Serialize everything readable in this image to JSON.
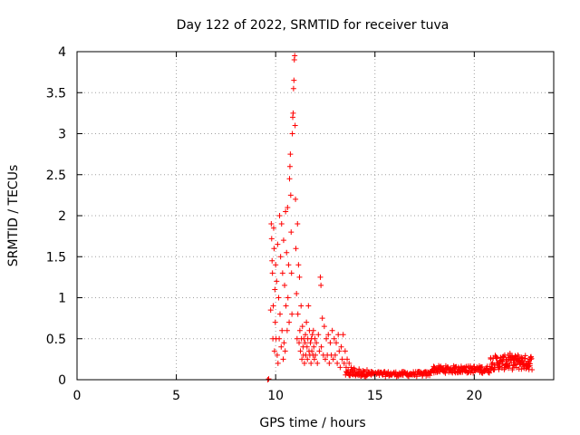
{
  "colors": {
    "series": "#ff0000",
    "axis": "#000000",
    "grid": "#a0a0a0",
    "background": "#ffffff"
  },
  "chart_data": {
    "type": "scatter",
    "title": "Day 122 of 2022, SRMTID for receiver tuva",
    "xlabel": "GPS time / hours",
    "ylabel": "SRMTID / TECUs",
    "xlim": [
      0,
      24
    ],
    "ylim": [
      0,
      4
    ],
    "xticks": [
      0,
      5,
      10,
      15,
      20
    ],
    "xtick_labels": [
      "0",
      "5",
      "10",
      "15",
      "20"
    ],
    "yticks": [
      0,
      0.5,
      1,
      1.5,
      2,
      2.5,
      3,
      3.5,
      4
    ],
    "ytick_labels": [
      "0",
      "0.5",
      "1",
      "1.5",
      "2",
      "2.5",
      "3",
      "3.5",
      "4"
    ],
    "grid": true,
    "marker": "plus",
    "series": [
      {
        "name": "SRMTID",
        "points": [
          [
            9.6,
            0.0
          ],
          [
            9.65,
            0.01
          ],
          [
            9.75,
            0.85
          ],
          [
            9.78,
            1.9
          ],
          [
            9.8,
            1.72
          ],
          [
            9.82,
            1.45
          ],
          [
            9.84,
            1.3
          ],
          [
            9.86,
            0.5
          ],
          [
            9.88,
            0.9
          ],
          [
            9.9,
            1.85
          ],
          [
            9.92,
            1.6
          ],
          [
            9.94,
            0.35
          ],
          [
            9.96,
            1.1
          ],
          [
            9.98,
            0.7
          ],
          [
            10.0,
            1.4
          ],
          [
            10.02,
            0.5
          ],
          [
            10.05,
            1.2
          ],
          [
            10.08,
            0.3
          ],
          [
            10.1,
            1.65
          ],
          [
            10.12,
            0.2
          ],
          [
            10.15,
            1.0
          ],
          [
            10.18,
            0.5
          ],
          [
            10.2,
            2.0
          ],
          [
            10.22,
            0.8
          ],
          [
            10.25,
            1.5
          ],
          [
            10.28,
            0.4
          ],
          [
            10.3,
            1.9
          ],
          [
            10.32,
            0.6
          ],
          [
            10.35,
            1.3
          ],
          [
            10.38,
            0.25
          ],
          [
            10.4,
            1.7
          ],
          [
            10.42,
            0.45
          ],
          [
            10.45,
            1.15
          ],
          [
            10.48,
            0.35
          ],
          [
            10.5,
            2.05
          ],
          [
            10.52,
            0.9
          ],
          [
            10.55,
            1.55
          ],
          [
            10.58,
            0.6
          ],
          [
            10.6,
            2.1
          ],
          [
            10.62,
            1.0
          ],
          [
            10.65,
            1.4
          ],
          [
            10.68,
            0.7
          ],
          [
            10.7,
            2.45
          ],
          [
            10.72,
            2.6
          ],
          [
            10.74,
            2.75
          ],
          [
            10.76,
            2.25
          ],
          [
            10.78,
            1.8
          ],
          [
            10.8,
            1.3
          ],
          [
            10.82,
            0.8
          ],
          [
            10.84,
            3.0
          ],
          [
            10.86,
            3.2
          ],
          [
            10.88,
            3.25
          ],
          [
            10.9,
            3.55
          ],
          [
            10.92,
            3.65
          ],
          [
            10.94,
            3.9
          ],
          [
            10.96,
            3.95
          ],
          [
            10.98,
            3.1
          ],
          [
            11.0,
            2.2
          ],
          [
            11.02,
            1.6
          ],
          [
            11.05,
            1.05
          ],
          [
            11.08,
            0.5
          ],
          [
            11.1,
            1.9
          ],
          [
            11.12,
            0.8
          ],
          [
            11.15,
            1.4
          ],
          [
            11.18,
            0.45
          ],
          [
            11.2,
            1.25
          ],
          [
            11.22,
            0.6
          ],
          [
            11.25,
            0.35
          ],
          [
            11.28,
            0.9
          ],
          [
            11.3,
            0.5
          ],
          [
            11.32,
            0.25
          ],
          [
            11.35,
            0.65
          ],
          [
            11.38,
            0.4
          ],
          [
            11.4,
            0.3
          ],
          [
            11.42,
            0.5
          ],
          [
            11.45,
            0.2
          ],
          [
            11.48,
            0.45
          ],
          [
            11.5,
            0.55
          ],
          [
            11.52,
            0.3
          ],
          [
            11.55,
            0.7
          ],
          [
            11.58,
            0.4
          ],
          [
            11.6,
            0.25
          ],
          [
            11.62,
            0.5
          ],
          [
            11.65,
            0.9
          ],
          [
            11.68,
            0.35
          ],
          [
            11.7,
            0.6
          ],
          [
            11.72,
            0.3
          ],
          [
            11.75,
            0.45
          ],
          [
            11.78,
            0.2
          ],
          [
            11.8,
            0.5
          ],
          [
            11.82,
            0.35
          ],
          [
            11.85,
            0.55
          ],
          [
            11.88,
            0.3
          ],
          [
            11.9,
            0.6
          ],
          [
            11.92,
            0.4
          ],
          [
            11.95,
            0.25
          ],
          [
            11.98,
            0.5
          ],
          [
            12.0,
            0.3
          ],
          [
            12.05,
            0.45
          ],
          [
            12.1,
            0.2
          ],
          [
            12.15,
            0.55
          ],
          [
            12.2,
            0.35
          ],
          [
            12.25,
            1.25
          ],
          [
            12.28,
            1.15
          ],
          [
            12.3,
            0.4
          ],
          [
            12.35,
            0.75
          ],
          [
            12.4,
            0.3
          ],
          [
            12.45,
            0.65
          ],
          [
            12.5,
            0.25
          ],
          [
            12.55,
            0.5
          ],
          [
            12.6,
            0.3
          ],
          [
            12.65,
            0.55
          ],
          [
            12.7,
            0.2
          ],
          [
            12.75,
            0.45
          ],
          [
            12.8,
            0.3
          ],
          [
            12.85,
            0.6
          ],
          [
            12.9,
            0.25
          ],
          [
            12.95,
            0.5
          ],
          [
            13.0,
            0.3
          ],
          [
            13.05,
            0.45
          ],
          [
            13.1,
            0.2
          ],
          [
            13.15,
            0.55
          ],
          [
            13.2,
            0.35
          ],
          [
            13.25,
            0.15
          ],
          [
            13.3,
            0.4
          ],
          [
            13.35,
            0.25
          ],
          [
            13.4,
            0.55
          ],
          [
            13.45,
            0.2
          ],
          [
            13.5,
            0.35
          ],
          [
            13.55,
            0.15
          ],
          [
            13.6,
            0.25
          ],
          [
            13.65,
            0.12
          ],
          [
            13.7,
            0.2
          ],
          [
            13.75,
            0.1
          ],
          [
            13.8,
            0.15
          ],
          [
            13.85,
            0.12
          ],
          [
            13.9,
            0.1
          ],
          [
            13.95,
            0.14
          ],
          [
            14.0,
            0.12
          ],
          [
            14.1,
            0.1
          ],
          [
            14.2,
            0.13
          ],
          [
            14.3,
            0.09
          ],
          [
            14.4,
            0.11
          ],
          [
            14.5,
            0.1
          ],
          [
            14.6,
            0.12
          ],
          [
            14.7,
            0.08
          ],
          [
            14.8,
            0.1
          ],
          [
            14.9,
            0.09
          ],
          [
            15.0,
            0.07
          ],
          [
            15.2,
            0.08
          ],
          [
            15.4,
            0.06
          ],
          [
            15.6,
            0.07
          ],
          [
            15.8,
            0.06
          ],
          [
            16.0,
            0.07
          ],
          [
            16.2,
            0.06
          ],
          [
            16.4,
            0.07
          ],
          [
            16.6,
            0.06
          ],
          [
            16.8,
            0.07
          ],
          [
            17.0,
            0.06
          ],
          [
            17.2,
            0.07
          ],
          [
            17.4,
            0.06
          ],
          [
            17.6,
            0.08
          ],
          [
            17.8,
            0.1
          ],
          [
            18.0,
            0.12
          ],
          [
            18.2,
            0.1
          ],
          [
            18.4,
            0.11
          ],
          [
            18.6,
            0.12
          ],
          [
            18.8,
            0.13
          ],
          [
            19.0,
            0.14
          ],
          [
            19.2,
            0.15
          ],
          [
            19.4,
            0.13
          ],
          [
            19.6,
            0.16
          ],
          [
            19.8,
            0.14
          ],
          [
            20.0,
            0.12
          ],
          [
            20.2,
            0.13
          ],
          [
            20.4,
            0.11
          ],
          [
            20.6,
            0.14
          ],
          [
            20.8,
            0.16
          ],
          [
            21.0,
            0.18
          ],
          [
            21.2,
            0.2
          ],
          [
            21.4,
            0.22
          ],
          [
            21.6,
            0.25
          ],
          [
            21.7,
            0.3
          ],
          [
            21.8,
            0.32
          ],
          [
            21.9,
            0.28
          ],
          [
            22.0,
            0.27
          ],
          [
            22.1,
            0.25
          ],
          [
            22.2,
            0.3
          ],
          [
            22.3,
            0.24
          ],
          [
            22.4,
            0.22
          ],
          [
            22.5,
            0.2
          ],
          [
            22.6,
            0.19
          ],
          [
            22.7,
            0.18
          ],
          [
            22.8,
            0.17
          ]
        ],
        "dense_bands": [
          {
            "x_start": 13.5,
            "x_end": 17.8,
            "y_low": 0.04,
            "y_high": 0.1,
            "count": 130
          },
          {
            "x_start": 17.8,
            "x_end": 20.8,
            "y_low": 0.08,
            "y_high": 0.17,
            "count": 110
          },
          {
            "x_start": 20.8,
            "x_end": 22.9,
            "y_low": 0.12,
            "y_high": 0.3,
            "count": 110
          }
        ]
      }
    ]
  }
}
